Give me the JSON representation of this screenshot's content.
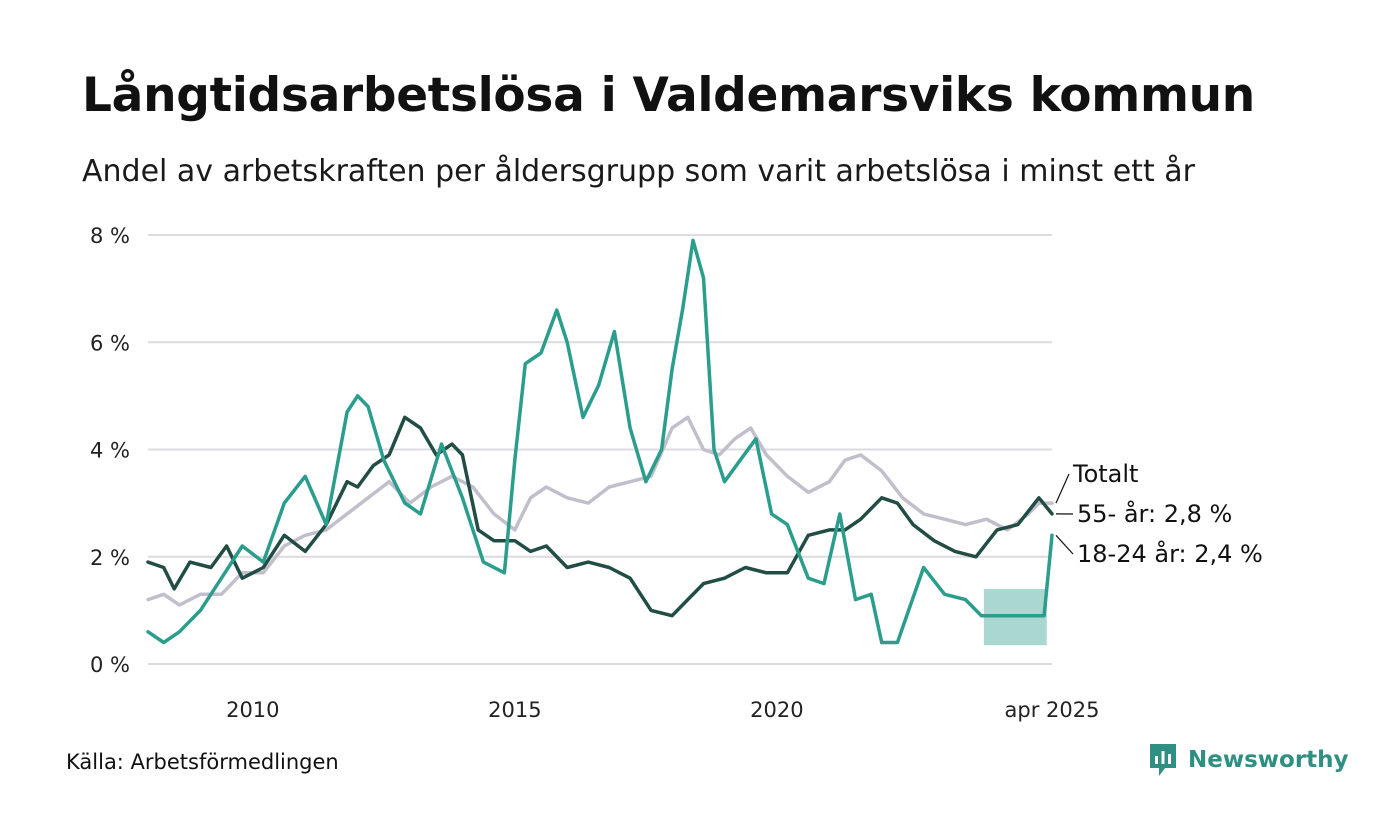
{
  "title": "Långtidsarbetslösa i Valdemarsviks kommun",
  "subtitle": "Andel av arbetskraften per åldersgrupp som varit arbetslösa i minst ett år",
  "source": "Källa: Arbetsförmedlingen",
  "brand": {
    "name": "Newsworthy",
    "icon": "newsworthy-logo-icon",
    "color": "#2e8f82"
  },
  "chart_data": {
    "type": "line",
    "title": "Långtidsarbetslösa i Valdemarsviks kommun",
    "ylim": [
      0,
      8
    ],
    "xlim": [
      2008.0,
      2025.25
    ],
    "y_ticks": [
      0,
      2,
      4,
      6,
      8
    ],
    "y_tick_labels": [
      "0 %",
      "2 %",
      "4 %",
      "6 %",
      "8 %"
    ],
    "x_ticks": [
      2010,
      2015,
      2020,
      2025.25
    ],
    "x_tick_labels": [
      "2010",
      "2015",
      "2020",
      "apr 2025"
    ],
    "grid": true,
    "legend": "direct-labels-right",
    "labels": {
      "totalt": "Totalt",
      "age55": "55- år: 2,8 %",
      "age18": "18-24 år: 2,4 %"
    },
    "series": [
      {
        "name": "Totalt",
        "color": "#c2bfcc",
        "points": [
          [
            2008.0,
            1.2
          ],
          [
            2008.3,
            1.3
          ],
          [
            2008.6,
            1.1
          ],
          [
            2009.0,
            1.3
          ],
          [
            2009.4,
            1.3
          ],
          [
            2009.8,
            1.7
          ],
          [
            2010.2,
            1.7
          ],
          [
            2010.6,
            2.2
          ],
          [
            2011.0,
            2.4
          ],
          [
            2011.4,
            2.5
          ],
          [
            2011.8,
            2.8
          ],
          [
            2012.2,
            3.1
          ],
          [
            2012.6,
            3.4
          ],
          [
            2013.0,
            3.0
          ],
          [
            2013.4,
            3.3
          ],
          [
            2013.8,
            3.5
          ],
          [
            2014.2,
            3.3
          ],
          [
            2014.6,
            2.8
          ],
          [
            2015.0,
            2.5
          ],
          [
            2015.3,
            3.1
          ],
          [
            2015.6,
            3.3
          ],
          [
            2016.0,
            3.1
          ],
          [
            2016.4,
            3.0
          ],
          [
            2016.8,
            3.3
          ],
          [
            2017.2,
            3.4
          ],
          [
            2017.6,
            3.5
          ],
          [
            2018.0,
            4.4
          ],
          [
            2018.3,
            4.6
          ],
          [
            2018.6,
            4.0
          ],
          [
            2018.9,
            3.9
          ],
          [
            2019.2,
            4.2
          ],
          [
            2019.5,
            4.4
          ],
          [
            2019.8,
            3.9
          ],
          [
            2020.2,
            3.5
          ],
          [
            2020.6,
            3.2
          ],
          [
            2021.0,
            3.4
          ],
          [
            2021.3,
            3.8
          ],
          [
            2021.6,
            3.9
          ],
          [
            2022.0,
            3.6
          ],
          [
            2022.4,
            3.1
          ],
          [
            2022.8,
            2.8
          ],
          [
            2023.2,
            2.7
          ],
          [
            2023.6,
            2.6
          ],
          [
            2024.0,
            2.7
          ],
          [
            2024.4,
            2.5
          ],
          [
            2024.8,
            2.8
          ],
          [
            2025.0,
            3.0
          ],
          [
            2025.25,
            3.0
          ]
        ]
      },
      {
        "name": "55- år",
        "color": "#214d45",
        "points": [
          [
            2008.0,
            1.9
          ],
          [
            2008.3,
            1.8
          ],
          [
            2008.5,
            1.4
          ],
          [
            2008.8,
            1.9
          ],
          [
            2009.2,
            1.8
          ],
          [
            2009.5,
            2.2
          ],
          [
            2009.8,
            1.6
          ],
          [
            2010.2,
            1.8
          ],
          [
            2010.6,
            2.4
          ],
          [
            2011.0,
            2.1
          ],
          [
            2011.4,
            2.6
          ],
          [
            2011.8,
            3.4
          ],
          [
            2012.0,
            3.3
          ],
          [
            2012.3,
            3.7
          ],
          [
            2012.6,
            3.9
          ],
          [
            2012.9,
            4.6
          ],
          [
            2013.2,
            4.4
          ],
          [
            2013.5,
            3.9
          ],
          [
            2013.8,
            4.1
          ],
          [
            2014.0,
            3.9
          ],
          [
            2014.3,
            2.5
          ],
          [
            2014.6,
            2.3
          ],
          [
            2015.0,
            2.3
          ],
          [
            2015.3,
            2.1
          ],
          [
            2015.6,
            2.2
          ],
          [
            2016.0,
            1.8
          ],
          [
            2016.4,
            1.9
          ],
          [
            2016.8,
            1.8
          ],
          [
            2017.2,
            1.6
          ],
          [
            2017.6,
            1.0
          ],
          [
            2018.0,
            0.9
          ],
          [
            2018.3,
            1.2
          ],
          [
            2018.6,
            1.5
          ],
          [
            2019.0,
            1.6
          ],
          [
            2019.4,
            1.8
          ],
          [
            2019.8,
            1.7
          ],
          [
            2020.2,
            1.7
          ],
          [
            2020.6,
            2.4
          ],
          [
            2021.0,
            2.5
          ],
          [
            2021.3,
            2.5
          ],
          [
            2021.6,
            2.7
          ],
          [
            2022.0,
            3.1
          ],
          [
            2022.3,
            3.0
          ],
          [
            2022.6,
            2.6
          ],
          [
            2023.0,
            2.3
          ],
          [
            2023.4,
            2.1
          ],
          [
            2023.8,
            2.0
          ],
          [
            2024.2,
            2.5
          ],
          [
            2024.6,
            2.6
          ],
          [
            2025.0,
            3.1
          ],
          [
            2025.25,
            2.8
          ]
        ]
      },
      {
        "name": "18-24 år",
        "color": "#2a9d8c",
        "points": [
          [
            2008.0,
            0.6
          ],
          [
            2008.3,
            0.4
          ],
          [
            2008.6,
            0.6
          ],
          [
            2009.0,
            1.0
          ],
          [
            2009.4,
            1.6
          ],
          [
            2009.8,
            2.2
          ],
          [
            2010.2,
            1.9
          ],
          [
            2010.6,
            3.0
          ],
          [
            2011.0,
            3.5
          ],
          [
            2011.4,
            2.6
          ],
          [
            2011.8,
            4.7
          ],
          [
            2012.0,
            5.0
          ],
          [
            2012.2,
            4.8
          ],
          [
            2012.5,
            3.8
          ],
          [
            2012.9,
            3.0
          ],
          [
            2013.2,
            2.8
          ],
          [
            2013.6,
            4.1
          ],
          [
            2014.0,
            3.1
          ],
          [
            2014.4,
            1.9
          ],
          [
            2014.8,
            1.7
          ],
          [
            2015.0,
            3.8
          ],
          [
            2015.2,
            5.6
          ],
          [
            2015.5,
            5.8
          ],
          [
            2015.8,
            6.6
          ],
          [
            2016.0,
            6.0
          ],
          [
            2016.3,
            4.6
          ],
          [
            2016.6,
            5.2
          ],
          [
            2016.9,
            6.2
          ],
          [
            2017.2,
            4.4
          ],
          [
            2017.5,
            3.4
          ],
          [
            2017.8,
            4.0
          ],
          [
            2018.0,
            5.5
          ],
          [
            2018.2,
            6.6
          ],
          [
            2018.4,
            7.9
          ],
          [
            2018.6,
            7.2
          ],
          [
            2018.8,
            4.0
          ],
          [
            2019.0,
            3.4
          ],
          [
            2019.3,
            3.8
          ],
          [
            2019.6,
            4.2
          ],
          [
            2019.9,
            2.8
          ],
          [
            2020.2,
            2.6
          ],
          [
            2020.6,
            1.6
          ],
          [
            2020.9,
            1.5
          ],
          [
            2021.2,
            2.8
          ],
          [
            2021.5,
            1.2
          ],
          [
            2021.8,
            1.3
          ],
          [
            2022.0,
            0.4
          ],
          [
            2022.3,
            0.4
          ],
          [
            2022.8,
            1.8
          ],
          [
            2023.2,
            1.3
          ],
          [
            2023.6,
            1.2
          ],
          [
            2023.9,
            0.9
          ],
          [
            2024.4,
            0.9
          ],
          [
            2024.8,
            0.9
          ],
          [
            2025.1,
            0.9
          ],
          [
            2025.25,
            2.4
          ]
        ],
        "band": {
          "color": "#2a9d8c",
          "opacity": 0.4,
          "x": [
            2023.95,
            2025.15
          ],
          "lower": 0.35,
          "upper": 1.4
        }
      }
    ]
  }
}
